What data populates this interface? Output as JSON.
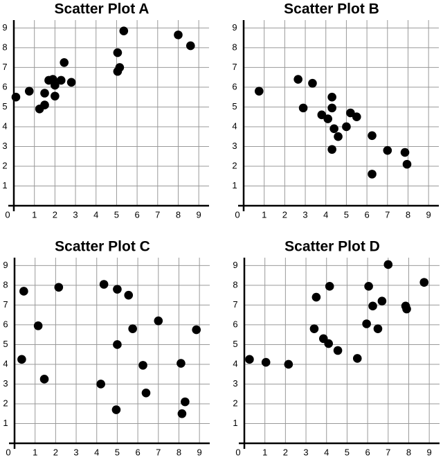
{
  "chart_data": [
    {
      "type": "scatter",
      "title": "Scatter Plot A",
      "color": "#000000",
      "grid": true,
      "xlim": [
        0,
        9.5
      ],
      "ylim": [
        0,
        9.4
      ],
      "xticks": [
        0,
        1,
        2,
        3,
        4,
        5,
        6,
        7,
        8,
        9
      ],
      "yticks": [
        1,
        2,
        3,
        4,
        5,
        6,
        7,
        8,
        9
      ],
      "x": [
        0.1,
        0.75,
        1.25,
        1.5,
        1.5,
        1.7,
        1.9,
        2.0,
        2.0,
        2.3,
        2.45,
        2.8,
        5.05,
        5.15,
        5.05,
        5.35,
        8.0,
        8.6
      ],
      "y": [
        5.5,
        5.8,
        4.9,
        5.1,
        5.7,
        6.35,
        6.4,
        6.1,
        5.55,
        6.35,
        7.25,
        6.25,
        6.8,
        7.0,
        7.75,
        8.85,
        8.65,
        8.1
      ]
    },
    {
      "type": "scatter",
      "title": "Scatter Plot B",
      "color": "#000000",
      "grid": true,
      "xlim": [
        0,
        9.5
      ],
      "ylim": [
        0,
        9.4
      ],
      "xticks": [
        0,
        1,
        2,
        3,
        4,
        5,
        6,
        7,
        8,
        9
      ],
      "yticks": [
        1,
        2,
        3,
        4,
        5,
        6,
        7,
        8,
        9
      ],
      "x": [
        0.75,
        2.65,
        3.35,
        2.9,
        3.8,
        4.1,
        4.3,
        4.3,
        4.4,
        4.6,
        4.3,
        5.0,
        5.2,
        5.5,
        6.25,
        6.25,
        7.0,
        7.85,
        7.95
      ],
      "y": [
        5.8,
        6.4,
        6.2,
        4.95,
        4.6,
        4.4,
        5.5,
        4.95,
        3.9,
        3.5,
        2.85,
        4.0,
        4.7,
        4.5,
        3.55,
        1.6,
        2.8,
        2.7,
        2.1
      ]
    },
    {
      "type": "scatter",
      "title": "Scatter Plot C",
      "color": "#000000",
      "grid": true,
      "xlim": [
        0,
        9.5
      ],
      "ylim": [
        0,
        9.4
      ],
      "xticks": [
        0,
        1,
        2,
        3,
        4,
        5,
        6,
        7,
        8,
        9
      ],
      "yticks": [
        1,
        2,
        3,
        4,
        5,
        6,
        7,
        8,
        9
      ],
      "x": [
        0.35,
        0.45,
        1.15,
        1.45,
        2.15,
        4.2,
        4.35,
        5.0,
        5.0,
        5.55,
        5.75,
        4.95,
        6.25,
        6.4,
        7.0,
        8.1,
        8.3,
        8.15,
        8.85
      ],
      "y": [
        4.25,
        7.7,
        5.95,
        3.25,
        7.9,
        3.0,
        8.05,
        7.8,
        5.0,
        7.5,
        5.8,
        1.7,
        3.95,
        2.55,
        6.2,
        4.05,
        2.1,
        1.5,
        5.75
      ]
    },
    {
      "type": "scatter",
      "title": "Scatter Plot D",
      "color": "#000000",
      "grid": true,
      "xlim": [
        0,
        9.5
      ],
      "ylim": [
        0,
        9.4
      ],
      "xticks": [
        0,
        1,
        2,
        3,
        4,
        5,
        6,
        7,
        8,
        9
      ],
      "yticks": [
        1,
        2,
        3,
        4,
        5,
        6,
        7,
        8,
        9
      ],
      "x": [
        0.25,
        1.05,
        2.15,
        3.5,
        3.4,
        3.85,
        4.1,
        4.15,
        4.55,
        5.5,
        5.95,
        6.05,
        6.25,
        6.5,
        6.7,
        7.0,
        7.85,
        7.9,
        8.75
      ],
      "y": [
        4.25,
        4.1,
        4.0,
        7.4,
        5.8,
        5.3,
        5.05,
        7.95,
        4.7,
        4.3,
        6.05,
        7.95,
        6.95,
        5.8,
        7.2,
        9.05,
        6.95,
        6.8,
        8.15
      ]
    }
  ]
}
